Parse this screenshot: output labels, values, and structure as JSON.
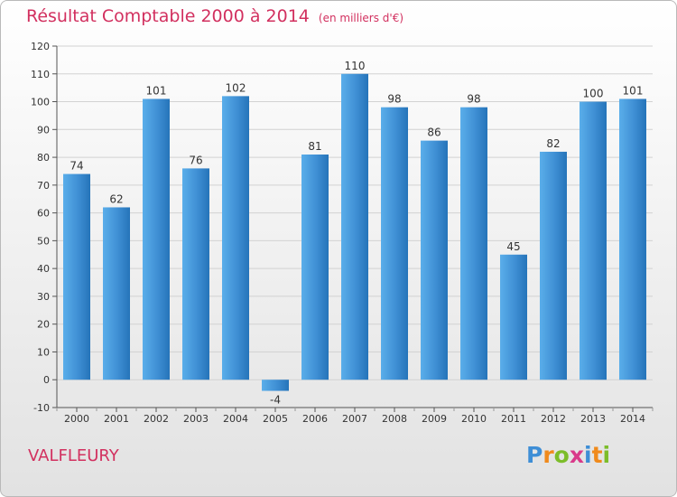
{
  "chart_data": {
    "type": "bar",
    "title": "Résultat Comptable 2000 à 2014",
    "unit_note": "(en milliers d'€)",
    "categories": [
      "2000",
      "2001",
      "2002",
      "2003",
      "2004",
      "2005",
      "2006",
      "2007",
      "2008",
      "2009",
      "2010",
      "2011",
      "2012",
      "2013",
      "2014"
    ],
    "values": [
      74,
      62,
      101,
      76,
      102,
      -4,
      81,
      110,
      98,
      86,
      98,
      45,
      82,
      100,
      101
    ],
    "ylim": [
      -10,
      120
    ],
    "yticks": [
      -10,
      0,
      10,
      20,
      30,
      40,
      50,
      60,
      70,
      80,
      90,
      100,
      110,
      120
    ],
    "xlabel": "",
    "ylabel": "",
    "grid": true,
    "bar_color": "#3f8fd4",
    "bar_color_light": "#5aaeea",
    "bar_color_dark": "#2574b9"
  },
  "place_name": "VALFLEURY",
  "logo": {
    "letters": [
      "P",
      "r",
      "o",
      "x",
      "i",
      "t",
      "i"
    ],
    "colors": [
      "#3e8ed6",
      "#f08a1c",
      "#7cbd2a",
      "#d93a8a",
      "#3e8ed6",
      "#f08a1c",
      "#7cbd2a"
    ]
  }
}
